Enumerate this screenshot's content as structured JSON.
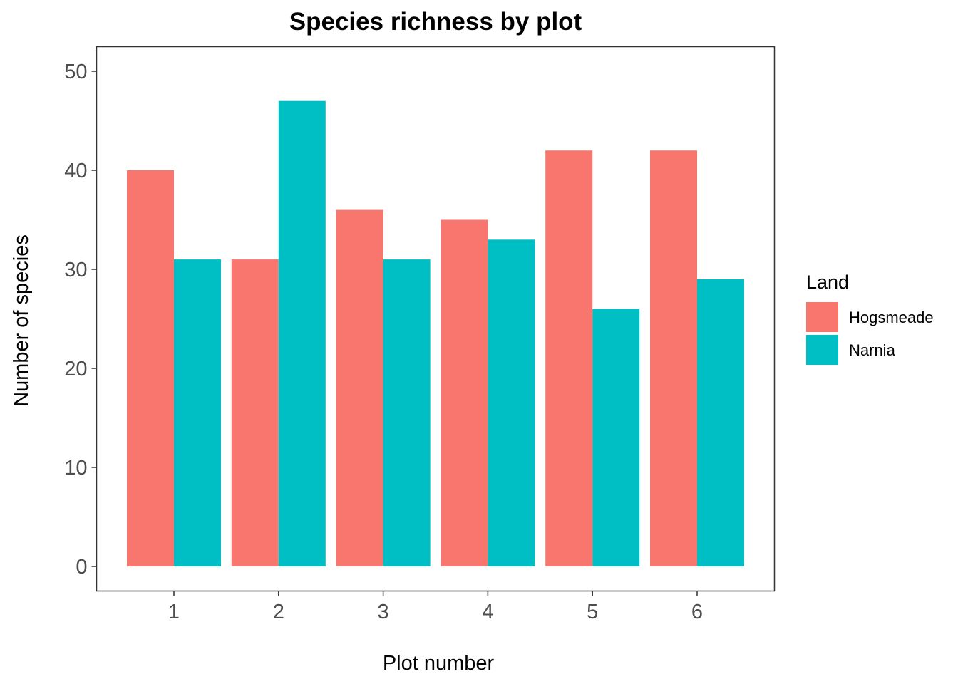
{
  "chart_data": {
    "type": "bar",
    "title": "Species richness by plot",
    "xlabel": "Plot number",
    "ylabel": "Number of species",
    "categories": [
      "1",
      "2",
      "3",
      "4",
      "5",
      "6"
    ],
    "series": [
      {
        "name": "Hogsmeade",
        "color": "#F8766D",
        "values": [
          40,
          31,
          36,
          35,
          42,
          42
        ]
      },
      {
        "name": "Narnia",
        "color": "#00BFC4",
        "values": [
          31,
          47,
          31,
          33,
          26,
          29
        ]
      }
    ],
    "ylim": [
      0,
      52.5
    ],
    "yticks": [
      0,
      10,
      20,
      30,
      40,
      50
    ],
    "ytick_labels": [
      "0",
      "10",
      "20",
      "30",
      "40",
      "50"
    ],
    "grid": false,
    "legend": {
      "title": "Land",
      "position": "right"
    }
  }
}
